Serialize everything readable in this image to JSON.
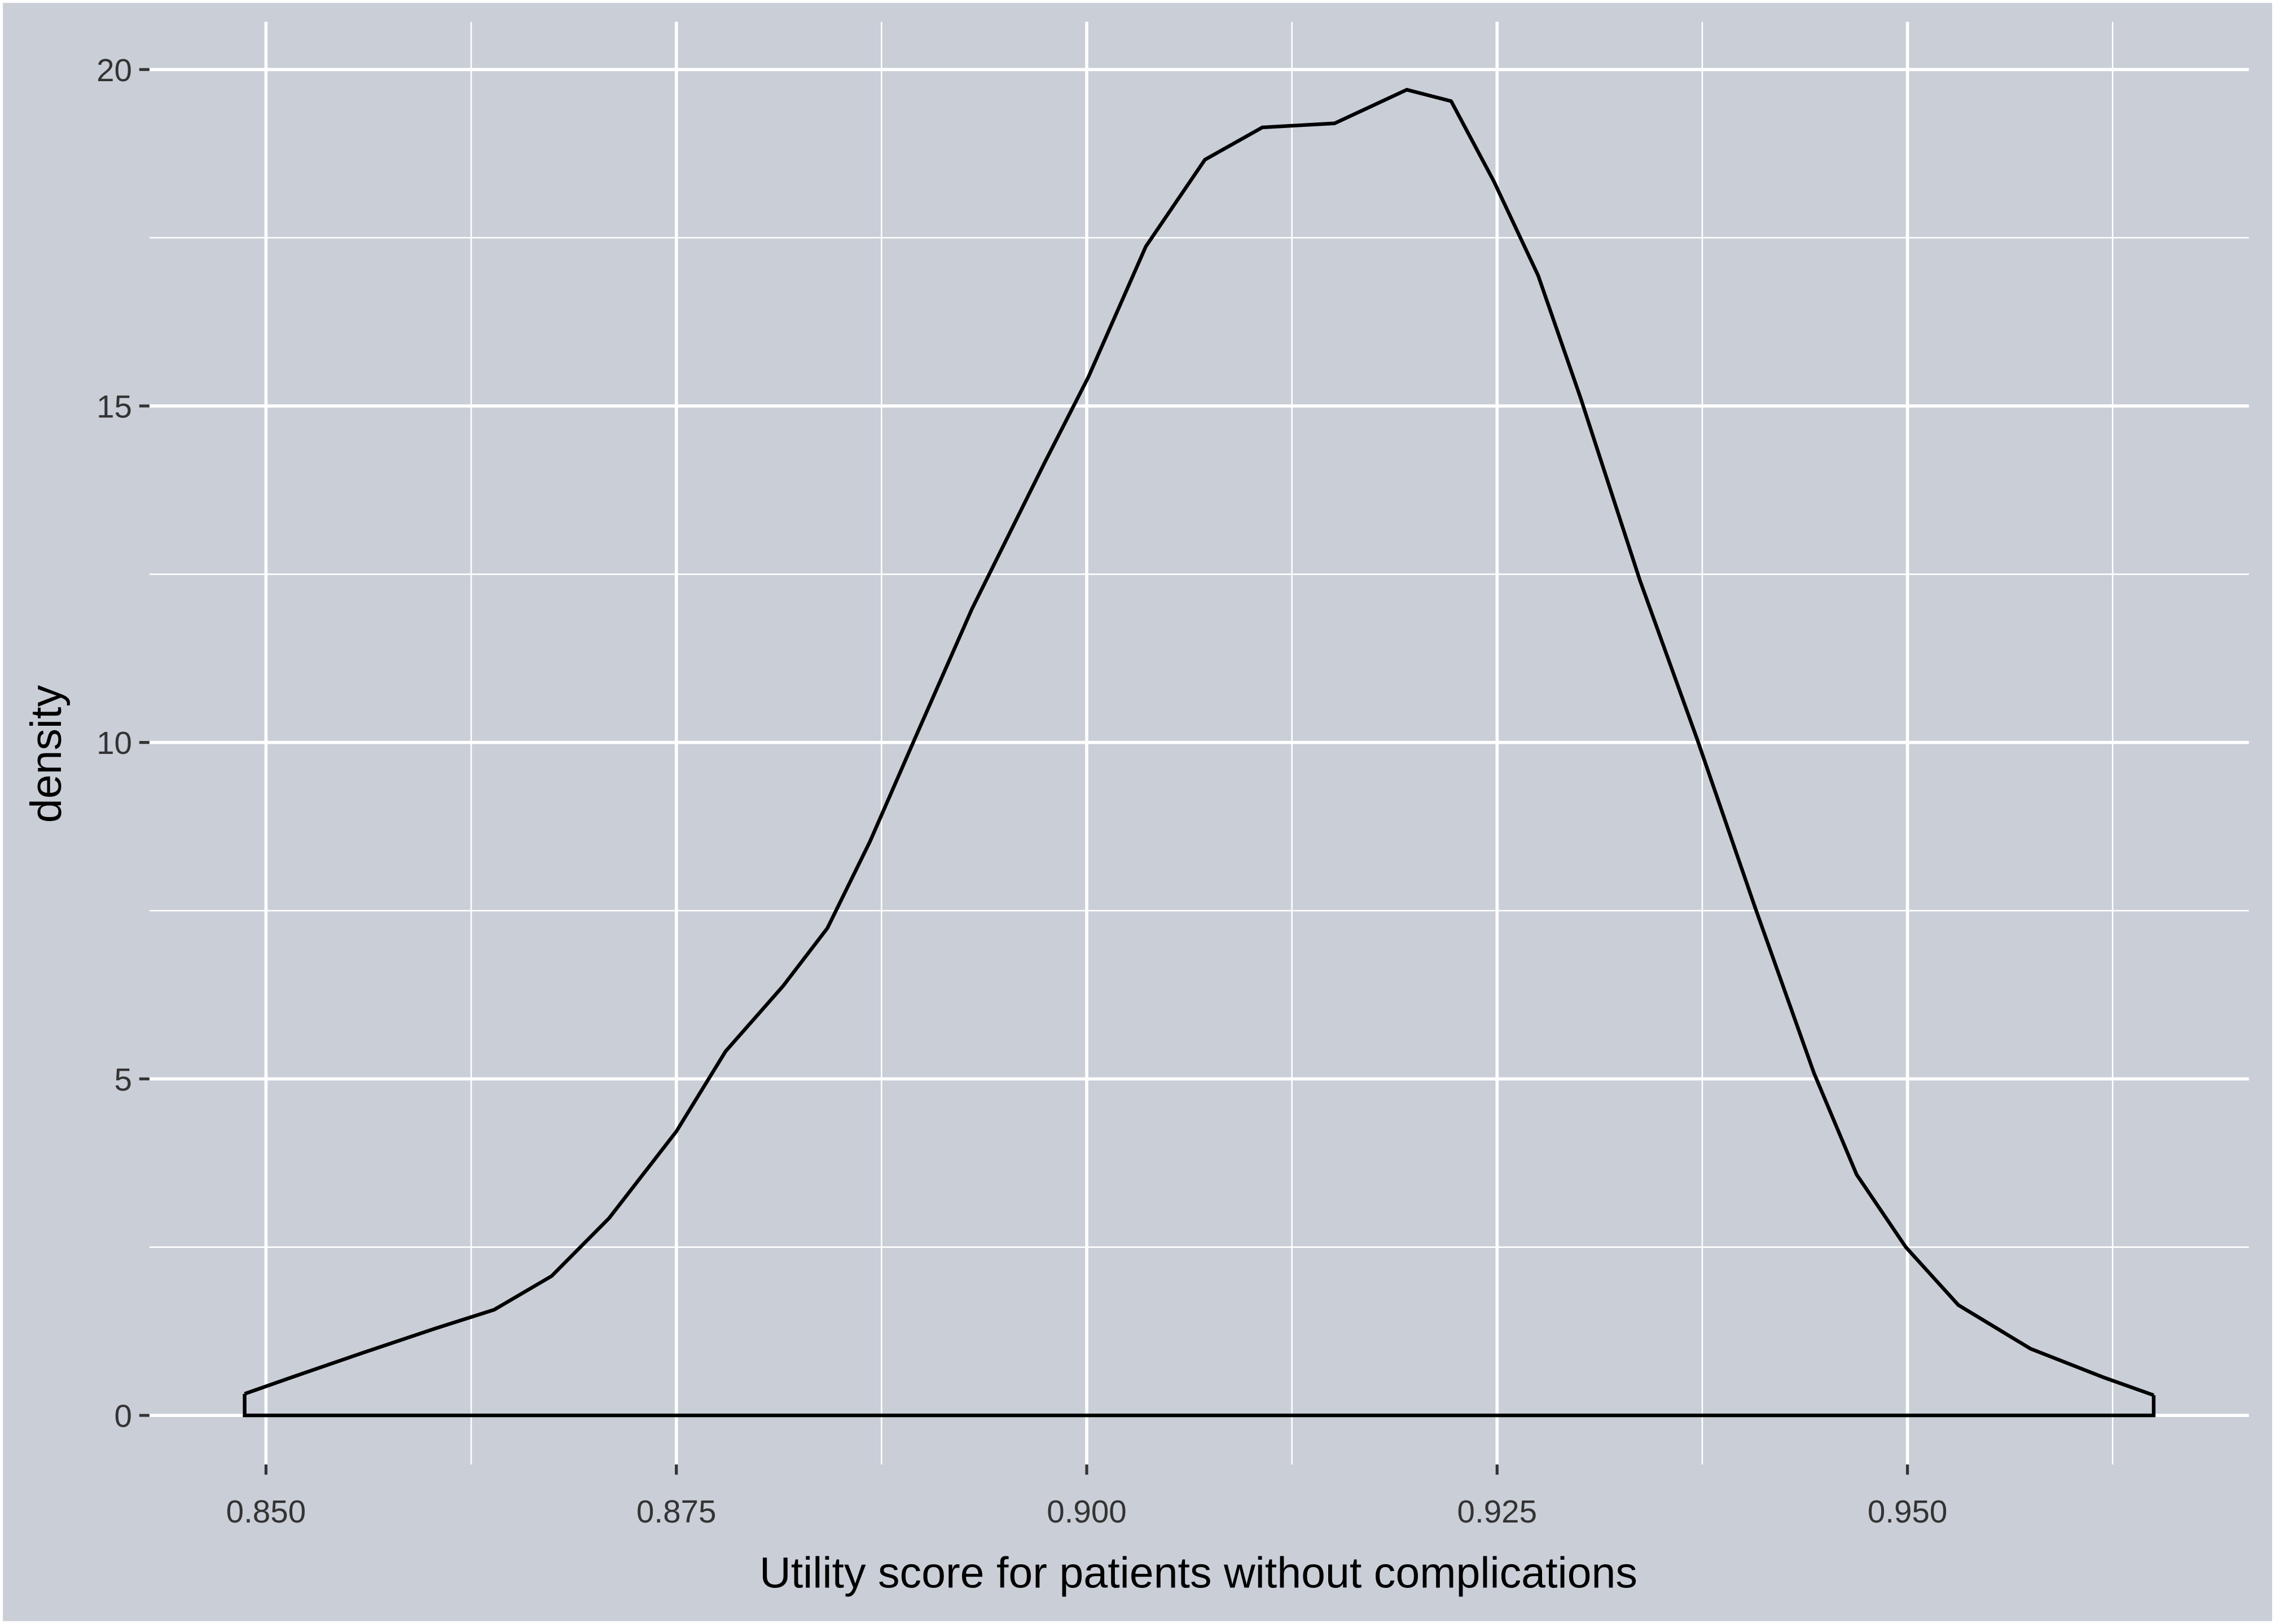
{
  "chart_data": {
    "type": "density",
    "x_label": "Utility score for patients without complications",
    "y_label": "density",
    "x": [
      0.8487,
      0.8515,
      0.8559,
      0.8603,
      0.8639,
      0.8674,
      0.8709,
      0.875,
      0.878,
      0.8815,
      0.8842,
      0.8868,
      0.8895,
      0.893,
      0.8974,
      0.9001,
      0.9036,
      0.9072,
      0.9107,
      0.9151,
      0.9195,
      0.9222,
      0.9248,
      0.9275,
      0.9301,
      0.9337,
      0.9372,
      0.9407,
      0.9443,
      0.9469,
      0.9499,
      0.9531,
      0.9575,
      0.962,
      0.965
    ],
    "values": [
      0.32,
      0.56,
      0.93,
      1.29,
      1.57,
      2.07,
      2.93,
      4.22,
      5.41,
      6.38,
      7.24,
      8.53,
      10.04,
      11.98,
      14.14,
      15.43,
      17.37,
      18.66,
      19.14,
      19.2,
      19.7,
      19.53,
      18.34,
      16.94,
      15.11,
      12.41,
      10.04,
      7.56,
      5.09,
      3.58,
      2.5,
      1.64,
      0.99,
      0.56,
      0.3
    ],
    "color": "#000000",
    "xlim": [
      0.8429,
      0.9708
    ],
    "ylim": [
      -0.73,
      20.71
    ],
    "xticks": [
      {
        "value": 0.85,
        "label": "0.850"
      },
      {
        "value": 0.875,
        "label": "0.875"
      },
      {
        "value": 0.9,
        "label": "0.900"
      },
      {
        "value": 0.925,
        "label": "0.925"
      },
      {
        "value": 0.95,
        "label": "0.950"
      }
    ],
    "yticks": [
      0,
      5,
      10,
      15,
      20
    ],
    "grid": true
  }
}
